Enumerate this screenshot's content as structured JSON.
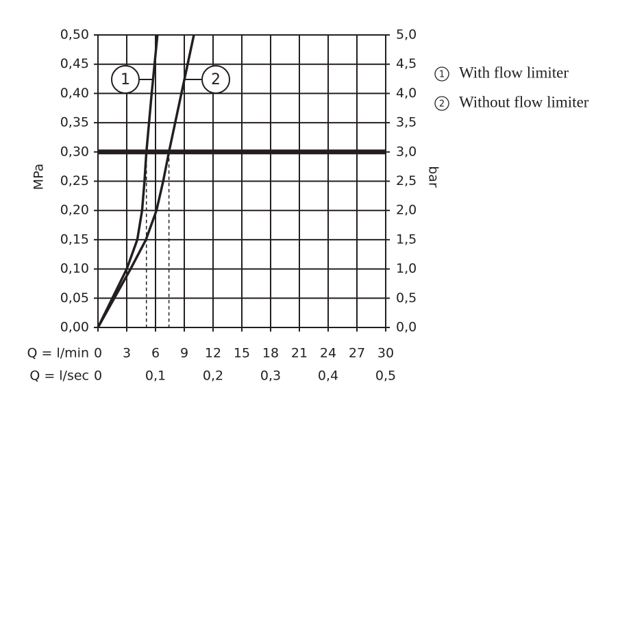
{
  "chart_data": {
    "type": "line",
    "xlabel": "Q = l/min",
    "x2label": "Q = l/sec",
    "ylabel": "MPa",
    "y2label": "bar",
    "xlim": [
      0,
      30
    ],
    "xticks": [
      0,
      3,
      6,
      9,
      12,
      15,
      18,
      21,
      24,
      27,
      30
    ],
    "x2lim": [
      0,
      0.5
    ],
    "x2ticks": [
      0,
      {
        "value": 0.1,
        "label": "0,1"
      },
      {
        "value": 0.2,
        "label": "0,2"
      },
      {
        "value": 0.3,
        "label": "0,3"
      },
      {
        "value": 0.4,
        "label": "0,4"
      },
      {
        "value": 0.5,
        "label": "0,5"
      }
    ],
    "ylim": [
      0,
      0.5
    ],
    "yticks": [
      {
        "value": 0,
        "label": "0,00"
      },
      {
        "value": 0.05,
        "label": "0,05"
      },
      {
        "value": 0.1,
        "label": "0,10"
      },
      {
        "value": 0.15,
        "label": "0,15"
      },
      {
        "value": 0.2,
        "label": "0,20"
      },
      {
        "value": 0.25,
        "label": "0,25"
      },
      {
        "value": 0.3,
        "label": "0,30"
      },
      {
        "value": 0.35,
        "label": "0,35"
      },
      {
        "value": 0.4,
        "label": "0,40"
      },
      {
        "value": 0.45,
        "label": "0,45"
      },
      {
        "value": 0.5,
        "label": "0,50"
      }
    ],
    "y2lim": [
      0,
      5
    ],
    "y2ticks": [
      {
        "value": 0,
        "label": "0,0"
      },
      {
        "value": 0.5,
        "label": "0,5"
      },
      {
        "value": 1,
        "label": "1,0"
      },
      {
        "value": 1.5,
        "label": "1,5"
      },
      {
        "value": 2,
        "label": "2,0"
      },
      {
        "value": 2.5,
        "label": "2,5"
      },
      {
        "value": 3,
        "label": "3,0"
      },
      {
        "value": 3.5,
        "label": "3,5"
      },
      {
        "value": 4,
        "label": "4,0"
      },
      {
        "value": 4.5,
        "label": "4,5"
      },
      {
        "value": 5,
        "label": "5,0"
      }
    ],
    "grid": true,
    "reference_line": 0.3,
    "series": [
      {
        "name": "With flow limiter",
        "label": "1",
        "color": "#231f20",
        "x": [
          0,
          1.5,
          3.0,
          4.1,
          4.6,
          4.85,
          5.05,
          5.6,
          6.2
        ],
        "values": [
          0,
          0.05,
          0.1,
          0.15,
          0.2,
          0.25,
          0.3,
          0.4,
          0.5
        ]
      },
      {
        "name": "Without flow limiter",
        "label": "2",
        "color": "#231f20",
        "x": [
          0,
          1.7,
          3.4,
          5.0,
          6.1,
          6.8,
          7.4,
          8.7,
          10.0
        ],
        "values": [
          0,
          0.05,
          0.1,
          0.15,
          0.2,
          0.25,
          0.3,
          0.4,
          0.5
        ]
      }
    ]
  }
}
